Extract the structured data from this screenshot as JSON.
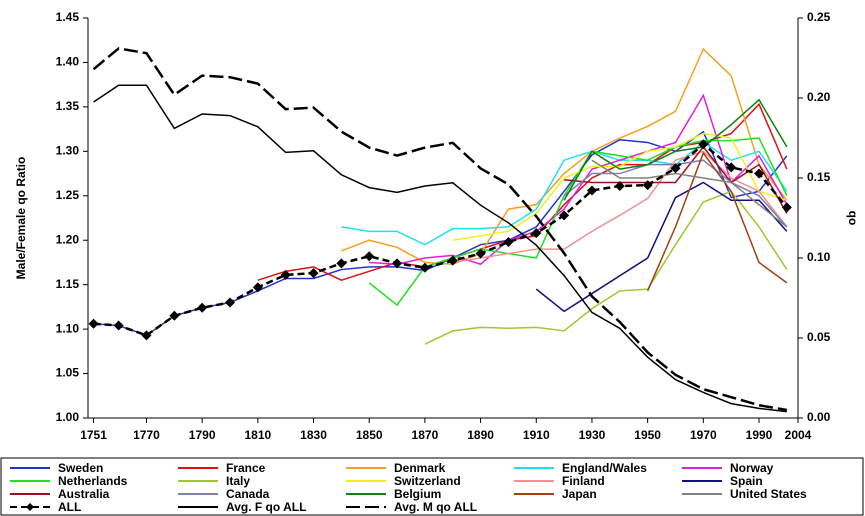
{
  "chart_data": {
    "type": "line",
    "y_label": "Male/Female qo Ratio",
    "y2_label": "qo",
    "x": [
      1751,
      1760,
      1770,
      1780,
      1790,
      1800,
      1810,
      1820,
      1830,
      1840,
      1850,
      1860,
      1870,
      1880,
      1890,
      1900,
      1910,
      1920,
      1930,
      1940,
      1950,
      1960,
      1970,
      1980,
      1990,
      2000
    ],
    "xlim": [
      1749,
      2004
    ],
    "xticks": [
      1751,
      1770,
      1790,
      1810,
      1830,
      1850,
      1870,
      1890,
      1910,
      1930,
      1950,
      1970,
      1990,
      2004
    ],
    "ylim": [
      1.0,
      1.45
    ],
    "yticks": [
      {
        "value": 1.0,
        "label": "1.00"
      },
      1.05,
      {
        "value": 1.1,
        "label": "1.10"
      },
      1.15,
      {
        "value": 1.2,
        "label": "1.20"
      },
      1.25,
      {
        "value": 1.3,
        "label": "1.30"
      },
      1.35,
      {
        "value": 1.4,
        "label": "1.40"
      },
      1.45
    ],
    "y2lim": [
      0,
      0.25
    ],
    "y2ticks": [
      {
        "value": 0,
        "label": "0.00"
      },
      0.05,
      {
        "value": 0.1,
        "label": "0.10"
      },
      0.15,
      {
        "value": 0.2,
        "label": "0.20"
      },
      0.25
    ],
    "legend": "bottom",
    "series": [
      {
        "name": "Sweden",
        "color": "#2233cc",
        "values": [
          1.106,
          1.104,
          1.093,
          1.115,
          1.124,
          1.13,
          1.143,
          1.157,
          1.157,
          1.167,
          1.17,
          1.17,
          1.166,
          1.18,
          1.195,
          1.2,
          1.215,
          1.255,
          1.296,
          1.313,
          1.31,
          1.3,
          1.322,
          1.248,
          1.255,
          1.295
        ]
      },
      {
        "name": "France",
        "color": "#e01010",
        "values": [
          null,
          null,
          null,
          null,
          null,
          null,
          1.155,
          1.165,
          1.17,
          1.155,
          1.165,
          1.175,
          1.17,
          1.18,
          1.19,
          1.2,
          1.205,
          1.24,
          1.27,
          1.285,
          1.285,
          1.305,
          1.31,
          1.32,
          1.353,
          1.28
        ]
      },
      {
        "name": "Denmark",
        "color": "#f5a020",
        "values": [
          null,
          null,
          null,
          null,
          null,
          null,
          null,
          null,
          null,
          1.188,
          1.2,
          1.192,
          1.175,
          1.173,
          1.185,
          1.235,
          1.24,
          1.275,
          1.3,
          1.315,
          1.328,
          1.345,
          1.415,
          1.385,
          1.285,
          1.245
        ]
      },
      {
        "name": "England/Wales",
        "color": "#20e0f0",
        "values": [
          null,
          null,
          null,
          null,
          null,
          null,
          null,
          null,
          null,
          1.215,
          1.21,
          1.21,
          1.195,
          1.213,
          1.213,
          1.215,
          1.235,
          1.29,
          1.3,
          1.29,
          1.29,
          1.285,
          1.31,
          1.29,
          1.3,
          1.255
        ]
      },
      {
        "name": "Norway",
        "color": "#e020e0",
        "values": [
          null,
          null,
          null,
          null,
          null,
          null,
          null,
          null,
          null,
          null,
          1.175,
          1.173,
          1.18,
          1.183,
          1.173,
          1.2,
          1.21,
          1.235,
          1.28,
          1.29,
          1.3,
          1.31,
          1.363,
          1.265,
          1.295,
          1.24
        ]
      },
      {
        "name": "Netherlands",
        "color": "#20e020",
        "values": [
          null,
          null,
          null,
          null,
          null,
          null,
          null,
          null,
          null,
          null,
          1.152,
          1.127,
          1.17,
          1.18,
          1.19,
          1.185,
          1.18,
          1.25,
          1.3,
          1.295,
          1.29,
          1.305,
          1.312,
          1.312,
          1.315,
          1.25
        ]
      },
      {
        "name": "Italy",
        "color": "#a0c830",
        "values": [
          null,
          null,
          null,
          null,
          null,
          null,
          null,
          null,
          null,
          null,
          null,
          null,
          1.083,
          1.098,
          1.102,
          1.101,
          1.102,
          1.098,
          1.123,
          1.143,
          1.145,
          1.195,
          1.243,
          1.255,
          1.215,
          1.167
        ]
      },
      {
        "name": "Switzerland",
        "color": "#f0f020",
        "values": [
          null,
          null,
          null,
          null,
          null,
          null,
          null,
          null,
          null,
          null,
          null,
          null,
          null,
          1.2,
          1.205,
          1.21,
          1.23,
          1.27,
          1.283,
          1.283,
          1.3,
          1.305,
          1.32,
          1.315,
          1.255,
          1.245
        ]
      },
      {
        "name": "Finland",
        "color": "#f09090",
        "values": [
          null,
          null,
          null,
          null,
          null,
          null,
          null,
          null,
          null,
          null,
          null,
          null,
          null,
          1.175,
          1.18,
          1.185,
          1.19,
          1.19,
          1.21,
          1.228,
          1.247,
          1.29,
          1.3,
          1.27,
          1.255,
          1.215
        ]
      },
      {
        "name": "Spain",
        "color": "#101080",
        "values": [
          null,
          null,
          null,
          null,
          null,
          null,
          null,
          null,
          null,
          null,
          null,
          null,
          null,
          null,
          null,
          null,
          1.145,
          1.12,
          1.14,
          1.16,
          1.18,
          1.248,
          1.265,
          1.245,
          1.245,
          1.21
        ]
      },
      {
        "name": "Australia",
        "color": "#a01020",
        "values": [
          null,
          null,
          null,
          null,
          null,
          null,
          null,
          null,
          null,
          null,
          null,
          null,
          null,
          null,
          null,
          null,
          null,
          1.268,
          1.265,
          1.265,
          1.265,
          1.265,
          1.305,
          1.265,
          1.285,
          1.23
        ]
      },
      {
        "name": "Canada",
        "color": "#8080b0",
        "values": [
          null,
          null,
          null,
          null,
          null,
          null,
          null,
          null,
          null,
          null,
          null,
          null,
          null,
          null,
          null,
          null,
          null,
          1.25,
          1.275,
          1.275,
          1.285,
          1.285,
          1.29,
          1.265,
          1.25,
          1.215
        ]
      },
      {
        "name": "Belgium",
        "color": "#108010",
        "values": [
          null,
          null,
          null,
          null,
          null,
          null,
          null,
          null,
          null,
          null,
          null,
          null,
          null,
          null,
          null,
          null,
          null,
          1.245,
          1.3,
          1.28,
          1.285,
          1.3,
          1.305,
          1.33,
          1.358,
          1.305
        ]
      },
      {
        "name": "Japan",
        "color": "#a04010",
        "values": [
          null,
          null,
          null,
          null,
          null,
          null,
          null,
          null,
          null,
          null,
          null,
          null,
          null,
          null,
          null,
          null,
          null,
          null,
          null,
          null,
          1.143,
          1.215,
          1.298,
          1.255,
          1.175,
          1.152
        ]
      },
      {
        "name": "United States",
        "color": "#808080",
        "values": [
          null,
          null,
          null,
          null,
          null,
          null,
          null,
          null,
          null,
          null,
          null,
          null,
          null,
          null,
          null,
          null,
          null,
          null,
          1.29,
          1.27,
          1.27,
          1.275,
          1.27,
          1.265,
          1.24,
          1.215
        ]
      },
      {
        "name": "ALL",
        "color": "#000000",
        "dash": "short",
        "marker": "diamond",
        "values": [
          1.106,
          1.104,
          1.093,
          1.115,
          1.124,
          1.13,
          1.147,
          1.161,
          1.163,
          1.174,
          1.182,
          1.174,
          1.169,
          1.177,
          1.185,
          1.198,
          1.208,
          1.228,
          1.256,
          1.261,
          1.262,
          1.281,
          1.308,
          1.282,
          1.275,
          1.237
        ]
      },
      {
        "name": "Avg. F qo ALL",
        "color": "#000000",
        "axis": "y2",
        "values": [
          0.1975,
          0.208,
          0.208,
          0.181,
          0.19,
          0.189,
          0.182,
          0.166,
          0.167,
          0.152,
          0.144,
          0.141,
          0.145,
          0.147,
          0.133,
          0.122,
          0.108,
          0.089,
          0.066,
          0.056,
          0.038,
          0.024,
          0.016,
          0.009,
          0.006,
          0.004
        ]
      },
      {
        "name": "Avg. M qo ALL",
        "color": "#000000",
        "axis": "y2",
        "dash": "long",
        "values": [
          0.218,
          0.231,
          0.228,
          0.202,
          0.214,
          0.213,
          0.209,
          0.193,
          0.194,
          0.179,
          0.169,
          0.164,
          0.169,
          0.172,
          0.156,
          0.146,
          0.126,
          0.103,
          0.076,
          0.06,
          0.041,
          0.027,
          0.018,
          0.013,
          0.008,
          0.005
        ]
      }
    ]
  }
}
